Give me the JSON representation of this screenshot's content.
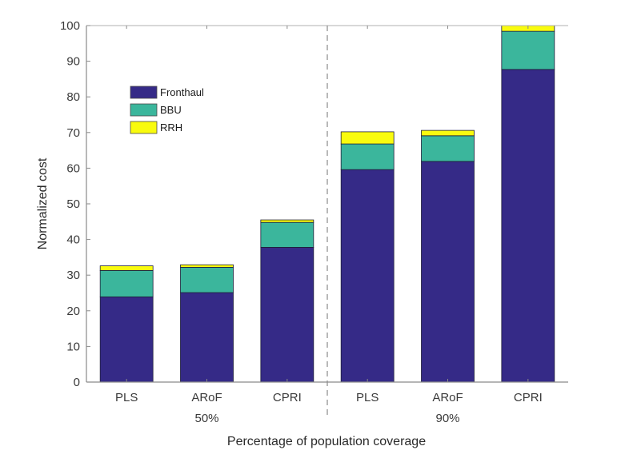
{
  "chart_data": {
    "type": "bar",
    "stacked": true,
    "title": "",
    "xlabel": "Percentage of population coverage",
    "ylabel": "Normalized cost",
    "ylim": [
      0,
      100
    ],
    "yticks": [
      0,
      10,
      20,
      30,
      40,
      50,
      60,
      70,
      80,
      90,
      100
    ],
    "grid": false,
    "categories": [
      "PLS",
      "ARoF",
      "CPRI",
      "PLS",
      "ARoF",
      "CPRI"
    ],
    "groups": [
      {
        "label": "50%",
        "categories": [
          0,
          1,
          2
        ]
      },
      {
        "label": "90%",
        "categories": [
          3,
          4,
          5
        ]
      }
    ],
    "group_separator": "dashed",
    "legend_position": "upper-left",
    "series": [
      {
        "name": "Fronthaul",
        "color": "#352a87",
        "values": [
          23.9,
          25.1,
          37.8,
          59.6,
          61.9,
          87.7
        ]
      },
      {
        "name": "BBU",
        "color": "#3bb69c",
        "values": [
          7.4,
          7.1,
          7.0,
          7.2,
          7.2,
          10.7
        ]
      },
      {
        "name": "RRH",
        "color": "#f9fb0e",
        "values": [
          1.3,
          0.7,
          0.7,
          3.4,
          1.5,
          1.6
        ]
      }
    ]
  }
}
